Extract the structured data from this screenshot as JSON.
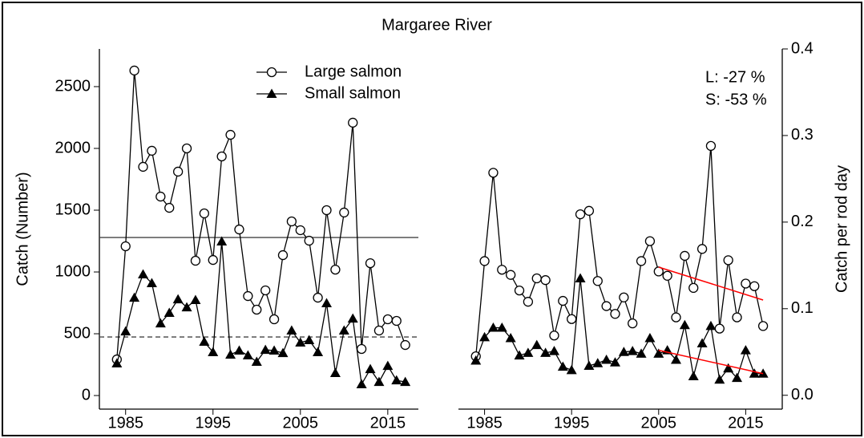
{
  "chart_data": [
    {
      "type": "line",
      "title": "Margaree River",
      "ylabel": "Catch (Number)",
      "yaxis_side": "left",
      "xlim": [
        1982,
        2018.5
      ],
      "xticks": [
        1985,
        1995,
        2005,
        2015
      ],
      "ylim": [
        -110,
        2805
      ],
      "yticks": [
        0,
        500,
        1000,
        1500,
        2000,
        2500
      ],
      "legend": "top",
      "x": [
        1984,
        1985,
        1986,
        1987,
        1988,
        1989,
        1990,
        1991,
        1992,
        1993,
        1994,
        1995,
        1996,
        1997,
        1998,
        1999,
        2000,
        2001,
        2002,
        2003,
        2004,
        2005,
        2006,
        2007,
        2008,
        2009,
        2010,
        2011,
        2012,
        2013,
        2014,
        2015,
        2016,
        2017
      ],
      "series": [
        {
          "name": "Large salmon",
          "color": "#000000",
          "marker": "circle",
          "values": [
            292,
            1208,
            2630,
            1851,
            1981,
            1610,
            1519,
            1812,
            2000,
            1091,
            1474,
            1097,
            1935,
            2110,
            1344,
            805,
            695,
            851,
            617,
            1136,
            1409,
            1338,
            1253,
            792,
            1500,
            1019,
            1481,
            2208,
            377,
            1071,
            526,
            617,
            604,
            409
          ]
        },
        {
          "name": "Small salmon",
          "color": "#000000",
          "marker": "triangle",
          "values": [
            260,
            519,
            792,
            981,
            909,
            584,
            669,
            779,
            714,
            773,
            435,
            351,
            1247,
            331,
            364,
            325,
            273,
            370,
            364,
            344,
            526,
            429,
            448,
            351,
            747,
            182,
            526,
            623,
            91,
            214,
            110,
            240,
            123,
            110
          ]
        }
      ],
      "hlines": [
        {
          "value": 1279,
          "style": "solid"
        },
        {
          "value": 474,
          "style": "dashed"
        }
      ]
    },
    {
      "type": "line",
      "ylabel": "Catch per rod day",
      "yaxis_side": "right",
      "xlim": [
        1982,
        2019.2
      ],
      "xticks": [
        1985,
        1995,
        2005,
        2015
      ],
      "ylim": [
        -0.016,
        0.4
      ],
      "yticks": [
        {
          "value": 0,
          "label": "0.0"
        },
        0.1,
        0.2,
        0.3,
        0.4
      ],
      "annotations": [
        "L: -27 %",
        "S: -53 %"
      ],
      "x": [
        1984,
        1985,
        1986,
        1987,
        1988,
        1989,
        1990,
        1991,
        1992,
        1993,
        1994,
        1995,
        1996,
        1997,
        1998,
        1999,
        2000,
        2001,
        2002,
        2003,
        2004,
        2005,
        2006,
        2007,
        2008,
        2009,
        2010,
        2011,
        2012,
        2013,
        2014,
        2015,
        2016,
        2017
      ],
      "series": [
        {
          "color": "#000000",
          "marker": "circle",
          "values": [
            0.045,
            0.155,
            0.257,
            0.145,
            0.139,
            0.121,
            0.108,
            0.135,
            0.133,
            0.069,
            0.109,
            0.088,
            0.209,
            0.213,
            0.132,
            0.103,
            0.094,
            0.113,
            0.083,
            0.155,
            0.178,
            0.143,
            0.138,
            0.09,
            0.161,
            0.124,
            0.169,
            0.288,
            0.077,
            0.156,
            0.09,
            0.129,
            0.126,
            0.08
          ]
        },
        {
          "color": "#000000",
          "marker": "triangle",
          "values": [
            0.04,
            0.067,
            0.078,
            0.078,
            0.066,
            0.046,
            0.049,
            0.058,
            0.049,
            0.051,
            0.033,
            0.029,
            0.135,
            0.034,
            0.037,
            0.041,
            0.038,
            0.05,
            0.051,
            0.048,
            0.066,
            0.048,
            0.052,
            0.041,
            0.081,
            0.022,
            0.06,
            0.08,
            0.018,
            0.031,
            0.02,
            0.052,
            0.025,
            0.025
          ]
        }
      ],
      "trend_lines": [
        {
          "x": [
            2005,
            2017
          ],
          "values": [
            0.148,
            0.11
          ],
          "color": "#ff0000"
        },
        {
          "x": [
            2005,
            2017
          ],
          "values": [
            0.052,
            0.025
          ],
          "color": "#ff0000"
        }
      ]
    }
  ]
}
